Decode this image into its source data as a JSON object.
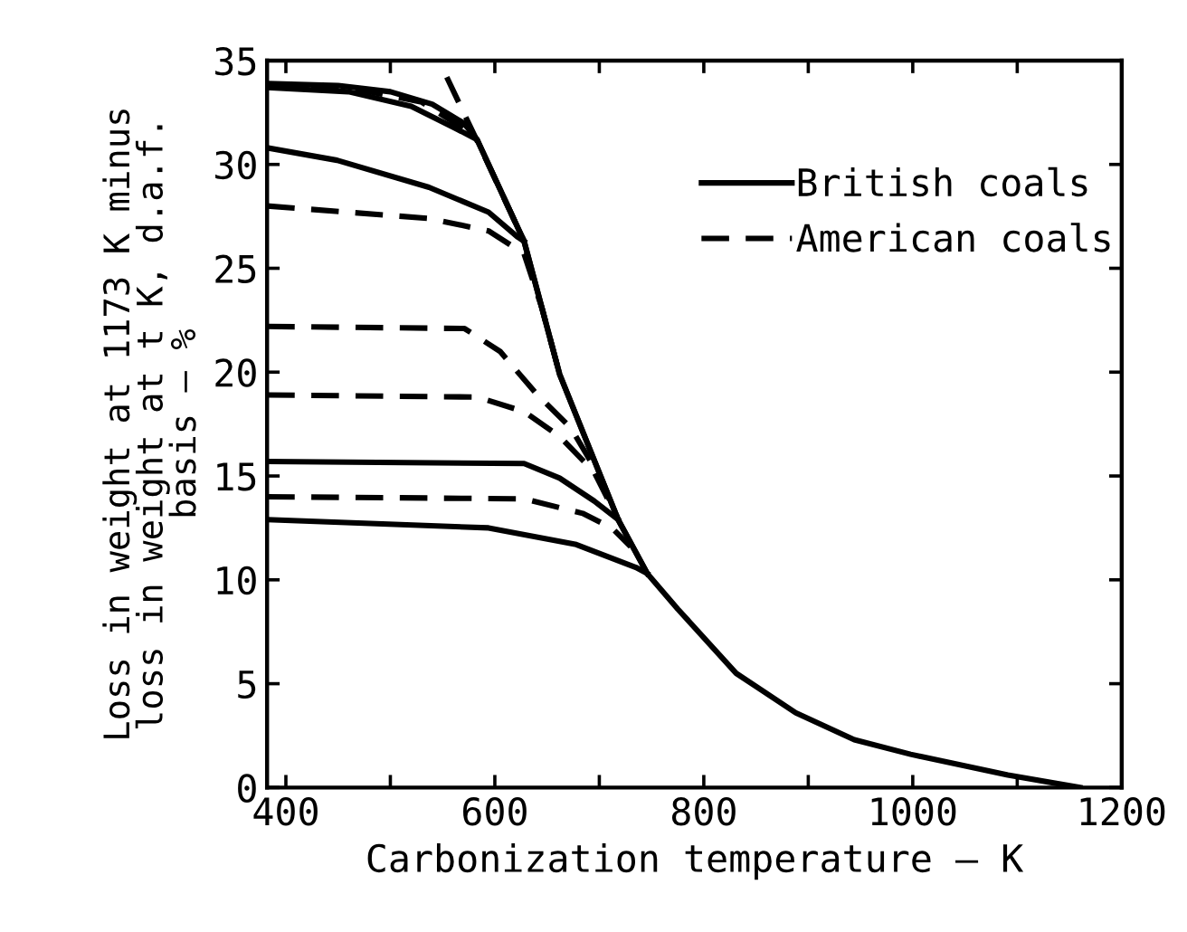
{
  "chart_data": {
    "type": "line",
    "xlabel": "Carbonization temperature — K",
    "ylabel": "Loss in weight at 1173 K minus\nloss in weight at t K, d.a.f.\nbasis — %",
    "xlim": [
      382,
      1200
    ],
    "ylim": [
      0,
      35
    ],
    "xticks": [
      400,
      {
        "value": 500,
        "label": null
      },
      600,
      {
        "value": 700,
        "label": null
      },
      800,
      {
        "value": 900,
        "label": null
      },
      1000,
      {
        "value": 1100,
        "label": null
      },
      1200
    ],
    "yticks": [
      0,
      5,
      10,
      15,
      20,
      25,
      30,
      35
    ],
    "grid": false,
    "legend": "top right",
    "marker": "none",
    "series": [
      {
        "name": "British coals",
        "color": "#000000",
        "line_style": "solid",
        "x": [
          382,
          450,
          500,
          540,
          570,
          583,
          628,
          662,
          690,
          718,
          746,
          775,
          831,
          888,
          944,
          998,
          1091,
          1160
        ],
        "values": [
          33.9,
          33.8,
          33.5,
          32.9,
          32.0,
          31.2,
          26.3,
          19.9,
          16.4,
          12.9,
          10.3,
          8.6,
          5.5,
          3.6,
          2.3,
          1.6,
          0.6,
          0
        ]
      },
      {
        "color": "#000000",
        "line_style": "solid",
        "x": [
          382,
          460,
          520,
          560,
          583,
          628,
          662,
          690,
          718,
          746
        ],
        "values": [
          33.7,
          33.5,
          32.8,
          31.8,
          31.2,
          26.3,
          19.9,
          16.4,
          12.9,
          10.3
        ]
      },
      {
        "color": "#000000",
        "line_style": "solid",
        "x": [
          382,
          449,
          537,
          594,
          622,
          628
        ],
        "values": [
          30.8,
          30.2,
          28.9,
          27.7,
          26.5,
          26.3
        ]
      },
      {
        "color": "#000000",
        "line_style": "solid",
        "x": [
          382,
          628,
          662,
          695,
          718
        ],
        "values": [
          15.7,
          15.6,
          14.9,
          13.8,
          12.9
        ]
      },
      {
        "color": "#000000",
        "line_style": "solid",
        "x": [
          382,
          594,
          678,
          735,
          746
        ],
        "values": [
          12.9,
          12.5,
          11.7,
          10.6,
          10.3
        ]
      },
      {
        "name": "American coals",
        "color": "#000000",
        "line_style": "dashed",
        "x": [
          382,
          470,
          530,
          565,
          583
        ],
        "values": [
          33.8,
          33.6,
          33.0,
          31.9,
          31.2
        ]
      },
      {
        "color": "#000000",
        "line_style": "dashed",
        "x": [
          554,
          571,
          590,
          628
        ],
        "values": [
          34.2,
          32.4,
          30.4,
          26.3
        ]
      },
      {
        "color": "#000000",
        "line_style": "dashed",
        "x": [
          382,
          537,
          594,
          628,
          645,
          662
        ],
        "values": [
          28.0,
          27.4,
          26.8,
          25.7,
          23.1,
          19.9
        ]
      },
      {
        "color": "#000000",
        "line_style": "dashed",
        "x": [
          382,
          571,
          605,
          639,
          673,
          700,
          718
        ],
        "values": [
          22.2,
          22.1,
          21.0,
          19.0,
          17.3,
          15.0,
          12.9
        ]
      },
      {
        "color": "#000000",
        "line_style": "dashed",
        "x": [
          382,
          583,
          628,
          662,
          695,
          718
        ],
        "values": [
          18.9,
          18.8,
          18.1,
          16.9,
          15.2,
          12.9
        ]
      },
      {
        "color": "#000000",
        "line_style": "dashed",
        "x": [
          382,
          628,
          684,
          712,
          730
        ],
        "values": [
          14.0,
          13.9,
          13.2,
          12.5,
          11.6
        ]
      }
    ]
  }
}
